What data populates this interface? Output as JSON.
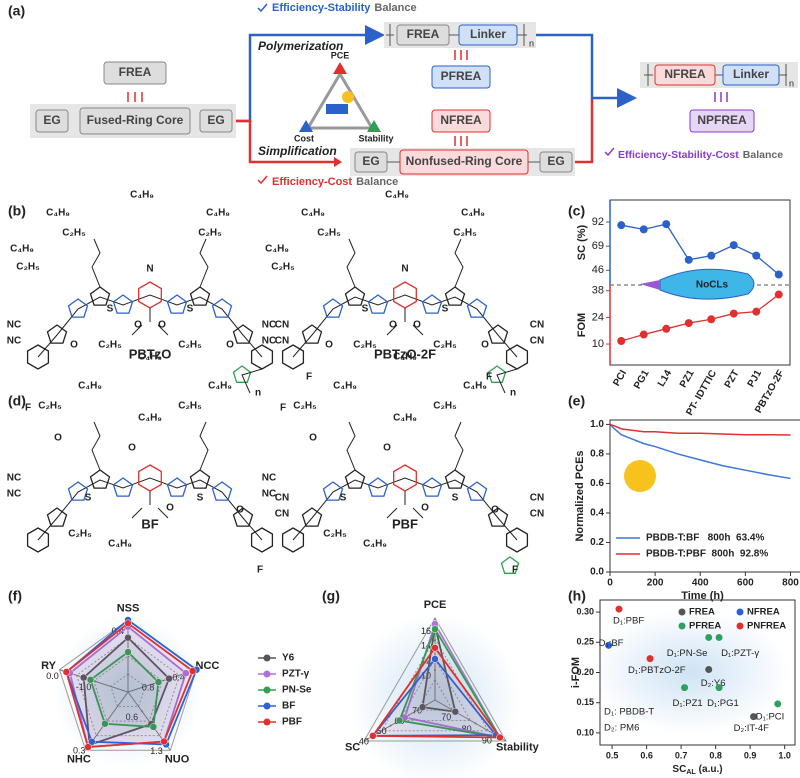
{
  "panel_a": {
    "label": "(a)",
    "top_balance": {
      "emph": "Efficiency-Stability",
      "rest": "Balance"
    },
    "left": {
      "frea": "FREA",
      "eg1": "EG",
      "core": "Fused-Ring Core",
      "eg2": "EG"
    },
    "polymerization": "Polymerization",
    "simplification": "Simplification",
    "triangle": {
      "pce": "PCE",
      "cost": "Cost",
      "stability": "Stability"
    },
    "pfrea_chain": {
      "frea": "FREA",
      "linker": "Linker",
      "n": "n",
      "product": "PFREA"
    },
    "nfrea_chain": {
      "product": "NFREA",
      "eg1": "EG",
      "core": "Nonfused-Ring Core",
      "eg2": "EG"
    },
    "bottom_balance": {
      "emph": "Efficiency-Cost",
      "rest": "Balance"
    },
    "right": {
      "nfrea": "NFREA",
      "linker": "Linker",
      "n": "n",
      "product": "NPFREA",
      "emph": "Efficiency-Stability-Cost",
      "rest": "Balance"
    }
  },
  "panel_b": {
    "label": "(b)",
    "molecules": [
      {
        "name": "PBTzO",
        "atoms": [
          "C₄H₉",
          "C₄H₉",
          "C₄H₉",
          "C₂H₅",
          "C₂H₅",
          "C₄H₉",
          "C₂H₅",
          "N",
          "S",
          "S",
          "O",
          "O",
          "C₂H₅",
          "C₄H₉",
          "C₂H₅",
          "NC",
          "NC",
          "O",
          "O",
          "CN",
          "CN",
          "n"
        ]
      },
      {
        "name": "PBTzO-2F",
        "atoms": [
          "C₄H₉",
          "C₄H₉",
          "C₄H₉",
          "C₂H₅",
          "C₂H₅",
          "C₄H₉",
          "C₂H₅",
          "N",
          "S",
          "S",
          "O",
          "O",
          "C₂H₅",
          "C₄H₉",
          "C₂H₅",
          "NC",
          "NC",
          "O",
          "O",
          "CN",
          "CN",
          "n",
          "F",
          "F"
        ]
      }
    ]
  },
  "panel_d": {
    "label": "(d)",
    "molecules": [
      {
        "name": "BF",
        "atoms": [
          "C₄H₉",
          "C₂H₅",
          "C₄H₉",
          "C₂H₅",
          "C₄H₉",
          "O",
          "O",
          "S",
          "S",
          "C₂H₅",
          "C₄H₉",
          "NC",
          "NC",
          "O",
          "O",
          "CN",
          "CN",
          "F",
          "F"
        ]
      },
      {
        "name": "PBF",
        "atoms": [
          "C₄H₉",
          "C₂H₅",
          "C₄H₉",
          "C₂H₅",
          "C₄H₉",
          "O",
          "O",
          "S",
          "S",
          "C₂H₅",
          "C₄H₉",
          "NC",
          "NC",
          "O",
          "O",
          "CN",
          "CN",
          "F",
          "F"
        ]
      }
    ]
  },
  "chart_data": [
    {
      "type": "dual-line",
      "label": "(c)",
      "categories": [
        "PCI",
        "PG1",
        "L14",
        "PZ1",
        "PT- IDTTIC",
        "PZT",
        "PJ1",
        "PBTzO-2F"
      ],
      "category_colors": [
        "#222",
        "#222",
        "#222",
        "#222",
        "#222",
        "#222",
        "#222",
        "#e03030"
      ],
      "annotation": "NoCLs",
      "series": [
        {
          "name": "SC (%)",
          "color": "#2a62c9",
          "values": [
            89,
            85,
            90,
            56,
            60,
            70,
            60,
            42
          ],
          "ylim": [
            32,
            113
          ],
          "yticks": [
            46,
            69,
            92
          ]
        },
        {
          "name": "FOM",
          "color": "#e03030",
          "values": [
            11.6,
            15,
            18,
            21,
            23,
            26,
            27,
            36
          ],
          "ylim": [
            -1,
            41
          ],
          "yticks": [
            10,
            24,
            38
          ]
        }
      ]
    },
    {
      "type": "line",
      "label": "(e)",
      "xlabel": "Time (h)",
      "ylabel": "Normalized PCEs",
      "xlim": [
        0,
        820
      ],
      "xticks": [
        0,
        200,
        400,
        600,
        800
      ],
      "ylim": [
        0,
        1.03
      ],
      "yticks": [
        {
          "value": 0,
          "label": "0.0"
        },
        {
          "value": 0.2,
          "label": "0.2"
        },
        {
          "value": 0.4,
          "label": "0.4"
        },
        {
          "value": 0.6,
          "label": "0.6"
        },
        {
          "value": 0.8,
          "label": "0.8"
        },
        {
          "value": 1,
          "label": "1.0"
        }
      ],
      "legend": "lower left",
      "x": [
        0,
        20,
        50,
        100,
        150,
        200,
        300,
        400,
        500,
        600,
        700,
        800
      ],
      "series": [
        {
          "name": "PBDB-T:BF   800h  63.4%",
          "color": "#3a78d8",
          "values": [
            1,
            0.97,
            0.93,
            0.9,
            0.87,
            0.85,
            0.8,
            0.76,
            0.72,
            0.69,
            0.66,
            0.634
          ]
        },
        {
          "name": "PBDB-T:PBF  800h  92.8%",
          "color": "#e03030",
          "values": [
            1,
            0.99,
            0.97,
            0.96,
            0.95,
            0.95,
            0.94,
            0.94,
            0.935,
            0.93,
            0.93,
            0.928
          ]
        }
      ]
    },
    {
      "type": "radar",
      "label": "(f)",
      "axes": [
        {
          "name": "NSS",
          "lim": [
            -0.2,
            0.45
          ],
          "ticks": [
            0.4
          ]
        },
        {
          "name": "NCC",
          "lim": [
            1.2,
            0.3
          ],
          "ticks": [
            0.8,
            0.4
          ]
        },
        {
          "name": "NUO",
          "lim": [
            0.2,
            1.4
          ],
          "ticks": [
            0.6,
            1.3
          ]
        },
        {
          "name": "NHC",
          "lim": [
            -0.2,
            0.35
          ],
          "ticks": [
            0.3
          ]
        },
        {
          "name": "RY",
          "lim": [
            -2,
            0.1
          ],
          "ticks": [
            {
              "value": -1,
              "label": "-1.0"
            },
            {
              "value": 0,
              "label": "0.0"
            }
          ]
        }
      ],
      "series": [
        {
          "name": "Y6",
          "color": "#555555",
          "values": [
            0.29,
            0.66,
            0.86,
            0.3,
            -0.64
          ]
        },
        {
          "name": "PZT-γ",
          "color": "#b070e0",
          "values": [
            0.39,
            0.44,
            1.22,
            0.32,
            -0.22
          ]
        },
        {
          "name": "PN-Se",
          "color": "#30a050",
          "values": [
            0.16,
            0.8,
            0.92,
            0.1,
            -0.85
          ]
        },
        {
          "name": "BF",
          "color": "#2a62d8",
          "values": [
            0.45,
            0.3,
            1.28,
            0.27,
            -0.11
          ]
        },
        {
          "name": "PBF",
          "color": "#e03030",
          "values": [
            0.42,
            0.35,
            1.22,
            0.32,
            -0.11
          ]
        }
      ]
    },
    {
      "type": "radar",
      "label": "(g)",
      "axes": [
        {
          "name": "PCE",
          "lim": [
            6,
            17
          ],
          "ticks": [
            10,
            12,
            14,
            16
          ]
        },
        {
          "name": "Stability",
          "lim": [
            60,
            95
          ],
          "ticks": [
            70,
            80,
            90
          ]
        },
        {
          "name": "SC",
          "lim": [
            75,
            35
          ],
          "ticks": [
            70,
            60,
            50,
            40
          ]
        }
      ],
      "series": [
        {
          "color": "#555555",
          "values": [
            16,
            70,
            68
          ]
        },
        {
          "color": "#b070e0",
          "values": [
            16.2,
            92,
            58
          ]
        },
        {
          "color": "#30a050",
          "values": [
            15.5,
            92,
            55
          ]
        },
        {
          "color": "#2a62d8",
          "values": [
            11.5,
            90,
            40
          ]
        },
        {
          "color": "#e03030",
          "values": [
            13,
            92,
            40
          ]
        }
      ]
    },
    {
      "type": "scatter",
      "label": "(h)",
      "xlabel": {
        "main": "SC",
        "sub": "AL",
        "unit": "(a.u.)"
      },
      "ylabel": "i-FOM",
      "xlim": [
        0.465,
        1.03
      ],
      "xticks": [
        0.5,
        0.6,
        0.7,
        0.8,
        0.9,
        {
          "value": 1,
          "label": "1.0"
        }
      ],
      "ylim": [
        0.08,
        0.32
      ],
      "yticks": [
        {
          "value": 0.1,
          "label": "0.10"
        },
        {
          "value": 0.15,
          "label": "0.15"
        },
        {
          "value": 0.2,
          "label": "0.20"
        },
        {
          "value": 0.25,
          "label": "0.25"
        },
        {
          "value": 0.3,
          "label": "0.30"
        }
      ],
      "annotations": [
        "D₁: PBDB-T",
        "D₂: PM6"
      ],
      "legend": "upper right",
      "series": [
        {
          "name": "FREA",
          "color": "#555555",
          "x": [
            0.78,
            0.91
          ],
          "values": [
            0.205,
            0.127
          ],
          "labels": [
            "D₂:Y6",
            "D₂:IT-4F"
          ]
        },
        {
          "name": "NFREA",
          "color": "#2a62d8",
          "x": [
            0.49
          ],
          "values": [
            0.245
          ],
          "labels": [
            "D₁:BF"
          ]
        },
        {
          "name": "PFREA",
          "color": "#30a060",
          "x": [
            0.78,
            0.81,
            0.71,
            0.81,
            0.98
          ],
          "values": [
            0.258,
            0.258,
            0.175,
            0.175,
            0.148
          ],
          "labels": [
            "D₁:PN-Se",
            "D₁:PZT-γ",
            "D₁:PZ1",
            "D₁:PG1",
            "D₁:PCI"
          ]
        },
        {
          "name": "PNFREA",
          "color": "#e03030",
          "x": [
            0.52,
            0.61
          ],
          "values": [
            0.305,
            0.223
          ],
          "labels": [
            "D₁:PBF",
            "D₁:PBTzO-2F"
          ],
          "label_colors": [
            "#e03030",
            "#222"
          ]
        }
      ]
    }
  ]
}
